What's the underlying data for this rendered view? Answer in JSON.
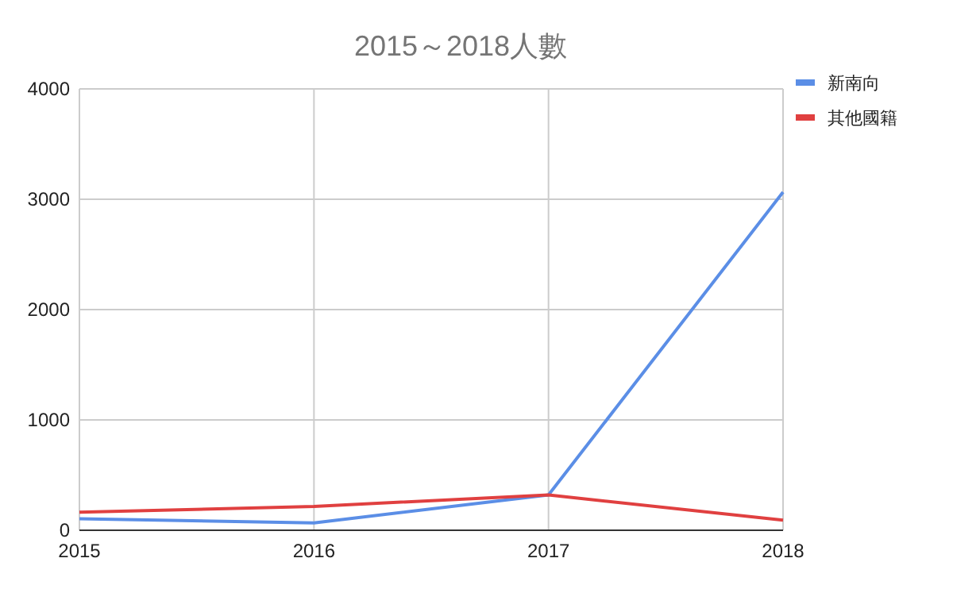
{
  "chart_data": {
    "type": "line",
    "title": "2015～2018人數",
    "x": [
      2015,
      2016,
      2017,
      2018
    ],
    "xlim": [
      2015,
      2018
    ],
    "xticks": [
      2015,
      2016,
      2017,
      2018
    ],
    "ylim": [
      0,
      4000
    ],
    "yticks": [
      0,
      1000,
      2000,
      3000,
      4000
    ],
    "grid": true,
    "legend": "top right",
    "series": [
      {
        "name": "新南向",
        "color": "#5b8ee6",
        "values": [
          105,
          67,
          320,
          3065
        ]
      },
      {
        "name": "其他國籍",
        "color": "#e04040",
        "values": [
          163,
          216,
          320,
          91
        ]
      }
    ]
  }
}
